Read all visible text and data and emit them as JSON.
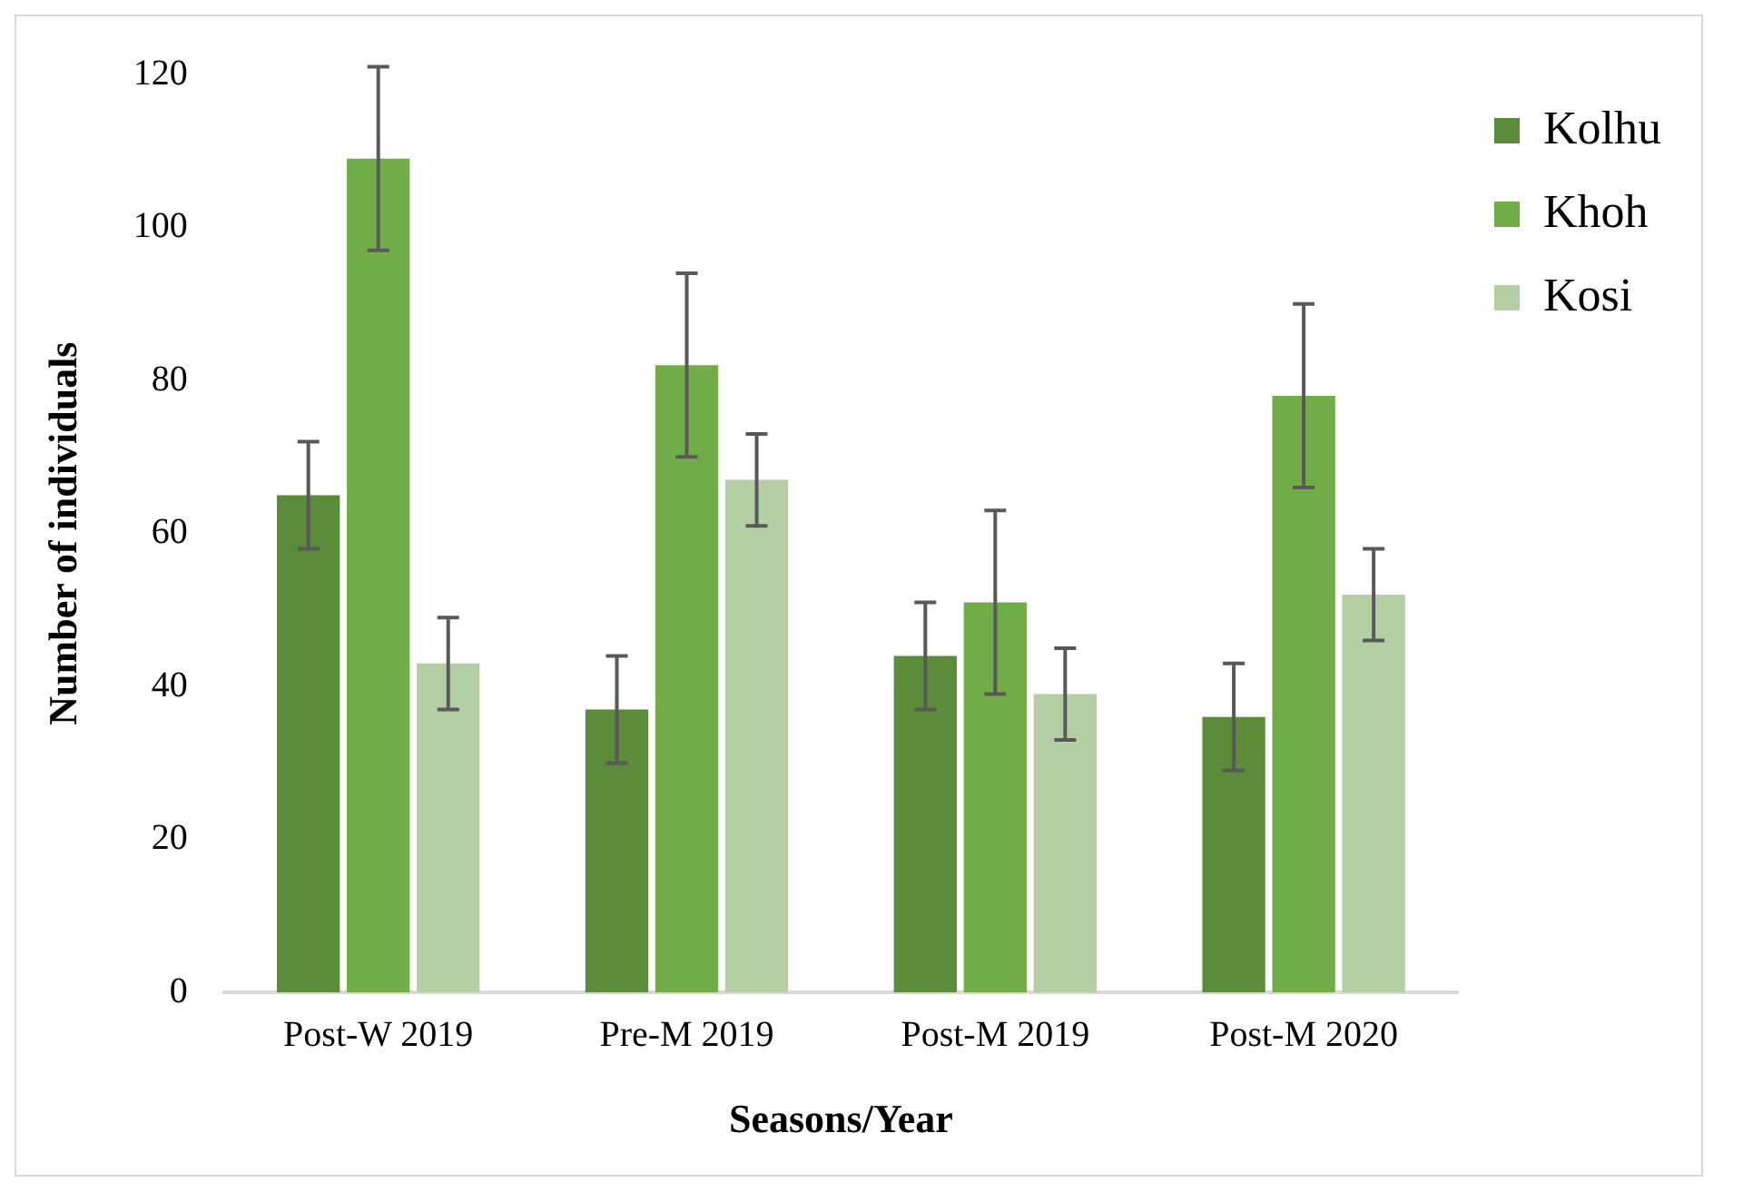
{
  "chart_data": {
    "type": "bar",
    "xlabel": "Seasons/Year",
    "ylabel": "Number of individuals",
    "categories": [
      "Post-W 2019",
      "Pre-M 2019",
      "Post-M 2019",
      "Post-M 2020"
    ],
    "series": [
      {
        "name": "Kolhu",
        "color": "#5b8c3a",
        "values": [
          65,
          37,
          44,
          36
        ],
        "errors": [
          7,
          7,
          7,
          7
        ]
      },
      {
        "name": "Khoh",
        "color": "#70ad47",
        "values": [
          109,
          82,
          51,
          78
        ],
        "errors": [
          12,
          12,
          12,
          12
        ]
      },
      {
        "name": "Kosi",
        "color": "#b5cfa5",
        "values": [
          43,
          67,
          39,
          52
        ],
        "errors": [
          6,
          6,
          6,
          6
        ]
      }
    ],
    "ylim": [
      0,
      120
    ],
    "yticks": [
      0,
      20,
      40,
      60,
      80,
      100,
      120
    ],
    "grid": false,
    "legend": "top right"
  }
}
